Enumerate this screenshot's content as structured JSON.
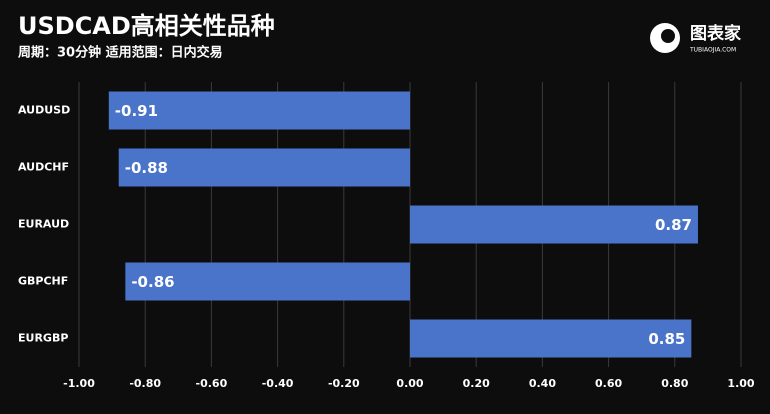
{
  "chart_data": {
    "type": "barh",
    "title": "USDCAD高相关性品种",
    "subtitle": "周期：30分钟 适用范围：日内交易",
    "categories": [
      "AUDUSD",
      "AUDCHF",
      "EURAUD",
      "GBPCHF",
      "EURGBP"
    ],
    "values": [
      -0.91,
      -0.88,
      0.87,
      -0.86,
      0.85
    ],
    "color": "#4a74c9",
    "xlim": [
      -1,
      1
    ],
    "xticks": [
      {
        "value": -1,
        "label": "-1.00"
      },
      {
        "value": -0.8,
        "label": "-0.80"
      },
      {
        "value": -0.6,
        "label": "-0.60"
      },
      {
        "value": -0.4,
        "label": "-0.40"
      },
      {
        "value": -0.2,
        "label": "-0.20"
      },
      {
        "value": 0,
        "label": "0.00"
      },
      {
        "value": 0.2,
        "label": "0.20"
      },
      {
        "value": 0.4,
        "label": "0.40"
      },
      {
        "value": 0.6,
        "label": "0.60"
      },
      {
        "value": 0.8,
        "label": "0.80"
      },
      {
        "value": 1,
        "label": "1.00"
      }
    ],
    "grid": true
  },
  "logo": {
    "text": "图表家",
    "subtext": "TUBIAOJIA.COM"
  }
}
